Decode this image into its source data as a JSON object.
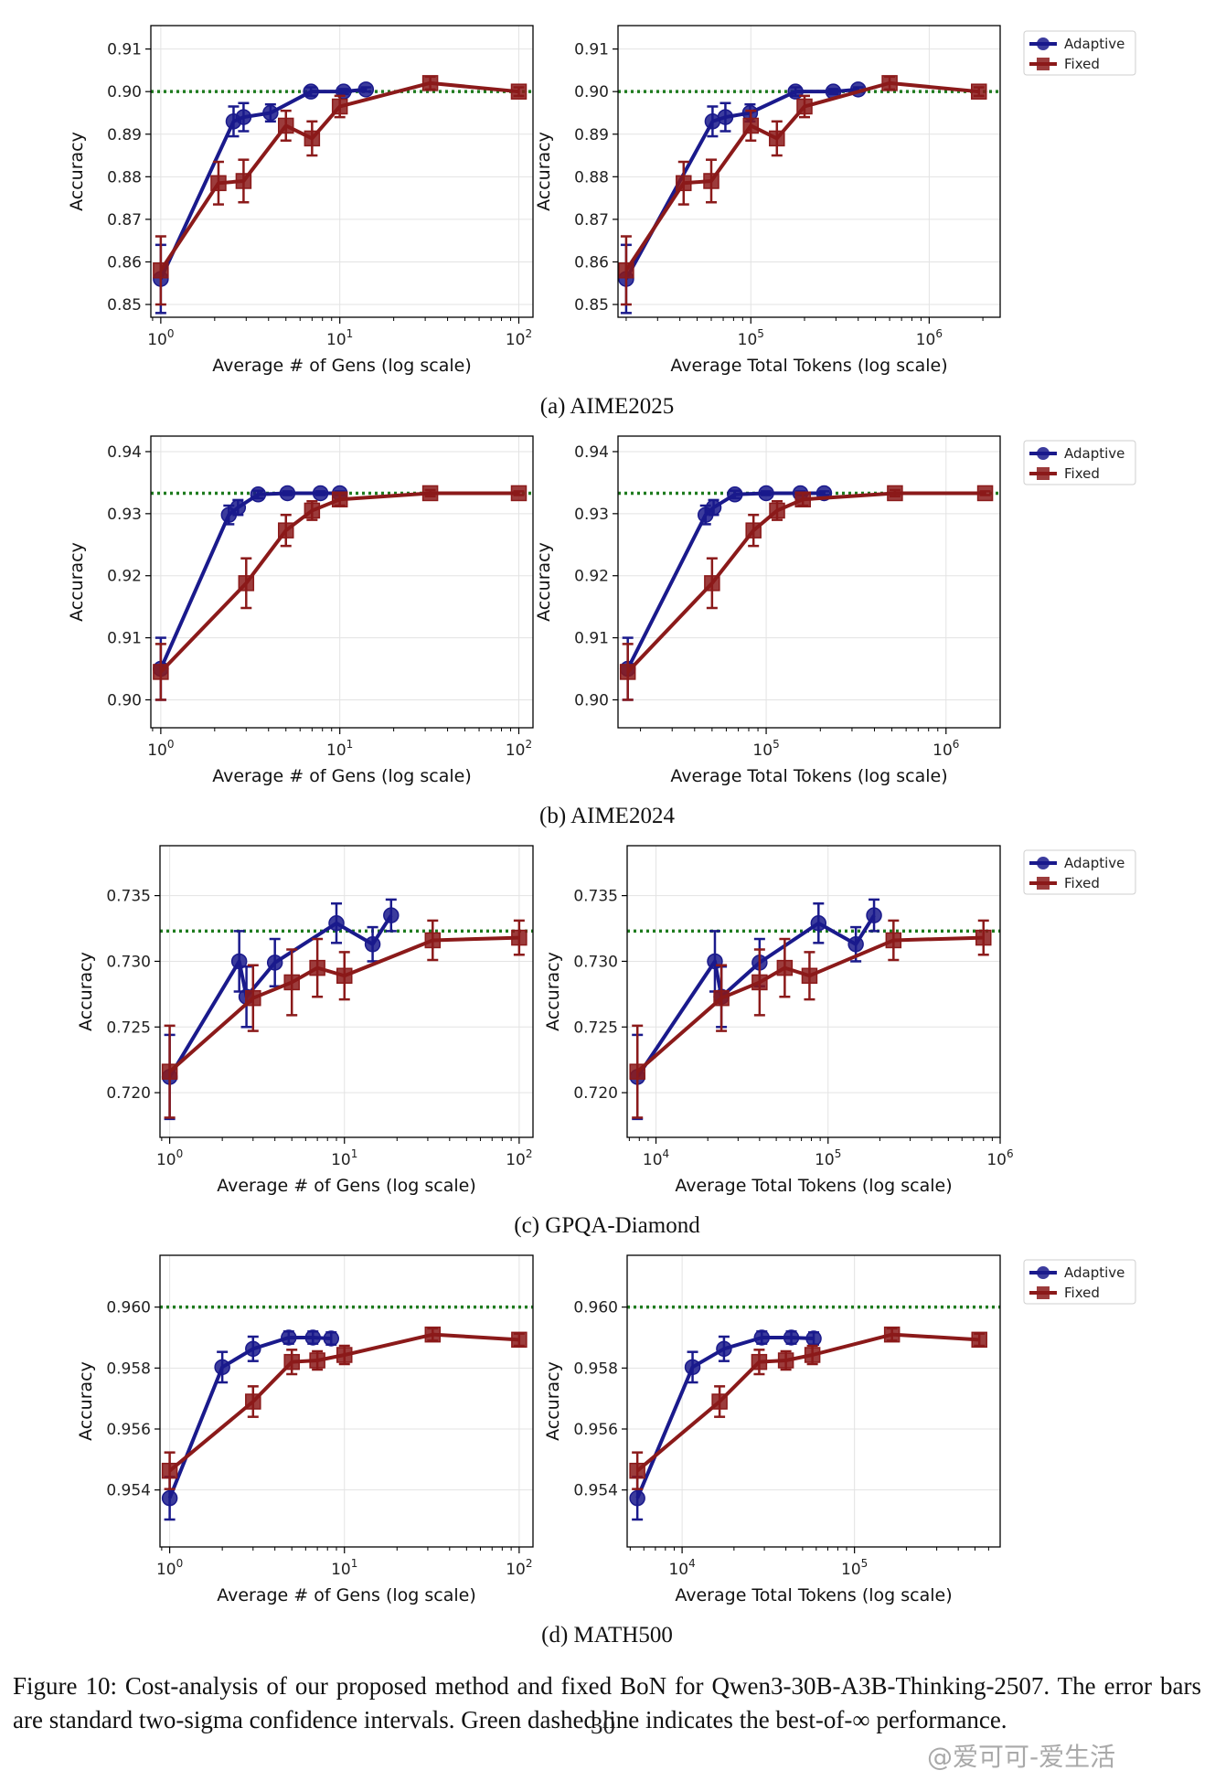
{
  "colors": {
    "adaptive": "#1a1a8c",
    "fixed": "#8b1a1a",
    "reference": "#1e7b1e",
    "grid": "#e3e3e3"
  },
  "legend_labels": [
    "Adaptive",
    "Fixed"
  ],
  "subfigure_captions": [
    "(a) AIME2025",
    "(b) AIME2024",
    "(c) GPQA-Diamond",
    "(d) MATH500"
  ],
  "figure_caption": "Figure 10: Cost-analysis of our proposed method and fixed BoN for Qwen3-30B-A3B-Thinking-2507. The error bars are standard two-sigma confidence intervals. Green dashed line indicates the best-of-∞ performance.",
  "page_number": "30",
  "watermark": "@爱可可-爱生活",
  "chart_data": [
    {
      "type": "line",
      "panel": "AIME2025 gens",
      "xlabel": "Average # of Gens (log scale)",
      "ylabel": "Accuracy",
      "xscale": "log",
      "xlim": [
        0.88,
        120
      ],
      "ylim": [
        0.847,
        0.9155
      ],
      "yticks": [
        0.85,
        0.86,
        0.87,
        0.88,
        0.89,
        0.9,
        0.91
      ],
      "yticklabels": [
        "0.85",
        "0.86",
        "0.87",
        "0.88",
        "0.89",
        "0.90",
        "0.91"
      ],
      "xticks": [
        1,
        10,
        100
      ],
      "xticklabels": [
        [
          "10",
          "0"
        ],
        [
          "10",
          "1"
        ],
        [
          "10",
          "2"
        ]
      ],
      "reference": 0.9,
      "legend": false,
      "grid": true,
      "series": [
        {
          "name": "Adaptive",
          "x": [
            1,
            2.55,
            2.9,
            4.1,
            6.9,
            10.5,
            14.0
          ],
          "y": [
            0.856,
            0.893,
            0.894,
            0.895,
            0.9,
            0.9,
            0.9005
          ],
          "err": [
            0.008,
            0.0035,
            0.0033,
            0.002,
            0.001,
            0.0006,
            0.0005
          ]
        },
        {
          "name": "Fixed",
          "x": [
            1,
            2.1,
            2.9,
            5,
            7,
            10,
            32,
            100
          ],
          "y": [
            0.858,
            0.8785,
            0.879,
            0.892,
            0.889,
            0.8965,
            0.902,
            0.9
          ],
          "err": [
            0.008,
            0.005,
            0.005,
            0.0035,
            0.004,
            0.0025,
            0.0015,
            0.001
          ]
        }
      ]
    },
    {
      "type": "line",
      "panel": "AIME2025 tokens",
      "xlabel": "Average Total Tokens (log scale)",
      "ylabel": "Accuracy",
      "xscale": "log",
      "xlim": [
        18000,
        2500000
      ],
      "ylim": [
        0.847,
        0.9155
      ],
      "yticks": [
        0.85,
        0.86,
        0.87,
        0.88,
        0.89,
        0.9,
        0.91
      ],
      "yticklabels": [
        "0.85",
        "0.86",
        "0.87",
        "0.88",
        "0.89",
        "0.90",
        "0.91"
      ],
      "xticks": [
        100000,
        1000000
      ],
      "xticklabels": [
        [
          "10",
          "5"
        ],
        [
          "10",
          "6"
        ]
      ],
      "reference": 0.9,
      "legend": true,
      "grid": true,
      "series": [
        {
          "name": "Adaptive",
          "x": [
            20000,
            61000,
            72000,
            99000,
            178000,
            290000,
            400000
          ],
          "y": [
            0.856,
            0.893,
            0.894,
            0.895,
            0.9,
            0.9,
            0.9005
          ],
          "err": [
            0.008,
            0.0035,
            0.0033,
            0.002,
            0.001,
            0.0006,
            0.0005
          ]
        },
        {
          "name": "Fixed",
          "x": [
            20000,
            42000,
            60000,
            100000,
            140000,
            200000,
            600000,
            1900000
          ],
          "y": [
            0.858,
            0.8785,
            0.879,
            0.892,
            0.889,
            0.8965,
            0.902,
            0.9
          ],
          "err": [
            0.008,
            0.005,
            0.005,
            0.0035,
            0.004,
            0.0025,
            0.0015,
            0.001
          ]
        }
      ]
    },
    {
      "type": "line",
      "panel": "AIME2024 gens",
      "xlabel": "Average # of Gens (log scale)",
      "ylabel": "Accuracy",
      "xscale": "log",
      "xlim": [
        0.88,
        120
      ],
      "ylim": [
        0.8955,
        0.9425
      ],
      "yticks": [
        0.9,
        0.91,
        0.92,
        0.93,
        0.94
      ],
      "yticklabels": [
        "0.90",
        "0.91",
        "0.92",
        "0.93",
        "0.94"
      ],
      "xticks": [
        1,
        10,
        100
      ],
      "xticklabels": [
        [
          "10",
          "0"
        ],
        [
          "10",
          "1"
        ],
        [
          "10",
          "2"
        ]
      ],
      "reference": 0.9333,
      "legend": false,
      "grid": true,
      "series": [
        {
          "name": "Adaptive",
          "x": [
            1,
            2.4,
            2.7,
            3.5,
            5.1,
            7.8,
            10
          ],
          "y": [
            0.905,
            0.9298,
            0.931,
            0.9331,
            0.9333,
            0.9333,
            0.9333
          ],
          "err": [
            0.005,
            0.0015,
            0.0012,
            0.0006,
            0.0003,
            0.0003,
            0.0003
          ]
        },
        {
          "name": "Fixed",
          "x": [
            1,
            3,
            5,
            7,
            10,
            32,
            100
          ],
          "y": [
            0.9045,
            0.9188,
            0.9273,
            0.9305,
            0.9323,
            0.9333,
            0.9333
          ],
          "err": [
            0.0045,
            0.004,
            0.0025,
            0.0015,
            0.001,
            0.0005,
            0.0003
          ]
        }
      ]
    },
    {
      "type": "line",
      "panel": "AIME2024 tokens",
      "xlabel": "Average Total Tokens (log scale)",
      "ylabel": "Accuracy",
      "xscale": "log",
      "xlim": [
        15000,
        2000000
      ],
      "ylim": [
        0.8955,
        0.9425
      ],
      "yticks": [
        0.9,
        0.91,
        0.92,
        0.93,
        0.94
      ],
      "yticklabels": [
        "0.90",
        "0.91",
        "0.92",
        "0.93",
        "0.94"
      ],
      "xticks": [
        100000,
        1000000
      ],
      "xticklabels": [
        [
          "10",
          "5"
        ],
        [
          "10",
          "6"
        ]
      ],
      "reference": 0.9333,
      "legend": true,
      "grid": true,
      "series": [
        {
          "name": "Adaptive",
          "x": [
            17000,
            46000,
            51000,
            67000,
            100000,
            155000,
            210000
          ],
          "y": [
            0.905,
            0.9298,
            0.931,
            0.9331,
            0.9333,
            0.9333,
            0.9333
          ],
          "err": [
            0.005,
            0.0015,
            0.0012,
            0.0006,
            0.0003,
            0.0003,
            0.0003
          ]
        },
        {
          "name": "Fixed",
          "x": [
            17000,
            50000,
            85000,
            115000,
            160000,
            520000,
            1650000
          ],
          "y": [
            0.9045,
            0.9188,
            0.9273,
            0.9305,
            0.9323,
            0.9333,
            0.9333
          ],
          "err": [
            0.0045,
            0.004,
            0.0025,
            0.0015,
            0.001,
            0.0005,
            0.0003
          ]
        }
      ]
    },
    {
      "type": "line",
      "panel": "GPQA-Diamond gens",
      "xlabel": "Average # of Gens (log scale)",
      "ylabel": "Accuracy",
      "xscale": "log",
      "xlim": [
        0.88,
        120
      ],
      "ylim": [
        0.7166,
        0.7388
      ],
      "yticks": [
        0.72,
        0.725,
        0.73,
        0.735
      ],
      "yticklabels": [
        "0.720",
        "0.725",
        "0.730",
        "0.735"
      ],
      "xticks": [
        1,
        10,
        100
      ],
      "xticklabels": [
        [
          "10",
          "0"
        ],
        [
          "10",
          "1"
        ],
        [
          "10",
          "2"
        ]
      ],
      "reference": 0.7323,
      "legend": false,
      "grid": true,
      "series": [
        {
          "name": "Adaptive",
          "x": [
            1,
            2.5,
            2.75,
            4.0,
            9.0,
            14.5,
            18.5
          ],
          "y": [
            0.7212,
            0.73,
            0.7273,
            0.7299,
            0.7329,
            0.7313,
            0.7335
          ],
          "err": [
            0.0032,
            0.0023,
            0.0023,
            0.0018,
            0.0015,
            0.0013,
            0.0012
          ]
        },
        {
          "name": "Fixed",
          "x": [
            1,
            3,
            5,
            7,
            10,
            32,
            100
          ],
          "y": [
            0.7216,
            0.7272,
            0.7284,
            0.7295,
            0.7289,
            0.7316,
            0.7318
          ],
          "err": [
            0.0035,
            0.0025,
            0.0025,
            0.0022,
            0.0018,
            0.0015,
            0.0013
          ]
        }
      ]
    },
    {
      "type": "line",
      "panel": "GPQA-Diamond tokens",
      "xlabel": "Average Total Tokens (log scale)",
      "ylabel": "Accuracy",
      "xscale": "log",
      "xlim": [
        6800,
        1000000
      ],
      "ylim": [
        0.7166,
        0.7388
      ],
      "yticks": [
        0.72,
        0.725,
        0.73,
        0.735
      ],
      "yticklabels": [
        "0.720",
        "0.725",
        "0.730",
        "0.735"
      ],
      "xticks": [
        10000,
        100000,
        1000000
      ],
      "xticklabels": [
        [
          "10",
          "4"
        ],
        [
          "10",
          "5"
        ],
        [
          "10",
          "6"
        ]
      ],
      "reference": 0.7323,
      "legend": true,
      "grid": true,
      "series": [
        {
          "name": "Adaptive",
          "x": [
            7800,
            22000,
            24000,
            40000,
            88000,
            145000,
            185000
          ],
          "y": [
            0.7212,
            0.73,
            0.7273,
            0.7299,
            0.7329,
            0.7313,
            0.7335
          ],
          "err": [
            0.0032,
            0.0023,
            0.0023,
            0.0018,
            0.0015,
            0.0013,
            0.0012
          ]
        },
        {
          "name": "Fixed",
          "x": [
            7800,
            24000,
            40000,
            56000,
            78000,
            240000,
            800000
          ],
          "y": [
            0.7216,
            0.7272,
            0.7284,
            0.7295,
            0.7289,
            0.7316,
            0.7318
          ],
          "err": [
            0.0035,
            0.0025,
            0.0025,
            0.0022,
            0.0018,
            0.0015,
            0.0013
          ]
        }
      ]
    },
    {
      "type": "line",
      "panel": "MATH500 gens",
      "xlabel": "Average # of Gens (log scale)",
      "ylabel": "Accuracy",
      "xscale": "log",
      "xlim": [
        0.88,
        120
      ],
      "ylim": [
        0.95213,
        0.9617
      ],
      "yticks": [
        0.954,
        0.956,
        0.958,
        0.96
      ],
      "yticklabels": [
        "0.954",
        "0.956",
        "0.958",
        "0.960"
      ],
      "xticks": [
        1,
        10,
        100
      ],
      "xticklabels": [
        [
          "10",
          "0"
        ],
        [
          "10",
          "1"
        ],
        [
          "10",
          "2"
        ]
      ],
      "reference": 0.96,
      "legend": false,
      "grid": true,
      "series": [
        {
          "name": "Adaptive",
          "x": [
            1,
            2.0,
            3.0,
            4.8,
            6.6,
            8.4
          ],
          "y": [
            0.95373,
            0.95803,
            0.95863,
            0.959,
            0.959,
            0.95897
          ],
          "err": [
            0.0007,
            0.0005,
            0.0004,
            0.0002,
            0.0002,
            0.0002
          ]
        },
        {
          "name": "Fixed",
          "x": [
            1,
            3,
            5,
            7,
            10,
            32,
            100
          ],
          "y": [
            0.95463,
            0.9569,
            0.9582,
            0.95825,
            0.95843,
            0.9591,
            0.95893
          ],
          "err": [
            0.0006,
            0.0005,
            0.0004,
            0.0003,
            0.0003,
            0.0002,
            0.0002
          ]
        }
      ]
    },
    {
      "type": "line",
      "panel": "MATH500 tokens",
      "xlabel": "Average Total Tokens (log scale)",
      "ylabel": "Accuracy",
      "xscale": "log",
      "xlim": [
        4800,
        700000
      ],
      "ylim": [
        0.95213,
        0.9617
      ],
      "yticks": [
        0.954,
        0.956,
        0.958,
        0.96
      ],
      "yticklabels": [
        "0.954",
        "0.956",
        "0.958",
        "0.960"
      ],
      "xticks": [
        10000,
        100000
      ],
      "xticklabels": [
        [
          "10",
          "4"
        ],
        [
          "10",
          "5"
        ]
      ],
      "reference": 0.96,
      "legend": true,
      "grid": true,
      "series": [
        {
          "name": "Adaptive",
          "x": [
            5500,
            11500,
            17500,
            29000,
            43000,
            58000
          ],
          "y": [
            0.95373,
            0.95803,
            0.95863,
            0.959,
            0.959,
            0.95897
          ],
          "err": [
            0.0007,
            0.0005,
            0.0004,
            0.0002,
            0.0002,
            0.0002
          ]
        },
        {
          "name": "Fixed",
          "x": [
            5500,
            16500,
            28000,
            40000,
            57000,
            165000,
            530000
          ],
          "y": [
            0.95463,
            0.9569,
            0.9582,
            0.95825,
            0.95843,
            0.9591,
            0.95893
          ],
          "err": [
            0.0006,
            0.0005,
            0.0004,
            0.0003,
            0.0003,
            0.0002,
            0.0002
          ]
        }
      ]
    }
  ]
}
